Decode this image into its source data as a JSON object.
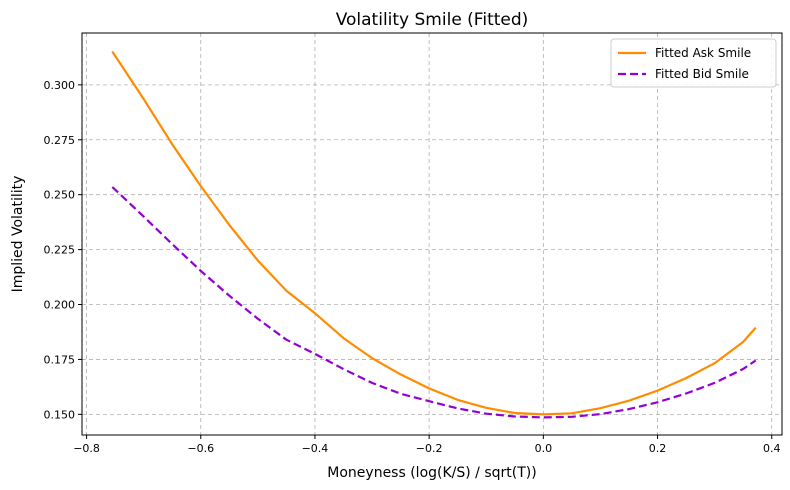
{
  "chart_data": {
    "type": "line",
    "title": "Volatility Smile (Fitted)",
    "xlabel": "Moneyness (log(K/S) / sqrt(T))",
    "ylabel": "Implied Volatility",
    "xlim": [
      -0.808,
      0.418
    ],
    "ylim": [
      0.1406,
      0.3236
    ],
    "xticks": [
      -0.8,
      -0.6,
      -0.4,
      -0.2,
      0.0,
      0.2,
      0.4
    ],
    "xtick_labels": [
      "−0.8",
      "−0.6",
      "−0.4",
      "−0.2",
      "0.0",
      "0.2",
      "0.4"
    ],
    "yticks": [
      0.15,
      0.175,
      0.2,
      0.225,
      0.25,
      0.275,
      0.3
    ],
    "ytick_labels": [
      "0.150",
      "0.175",
      "0.200",
      "0.225",
      "0.250",
      "0.275",
      "0.300"
    ],
    "grid": true,
    "legend_position": "top-right",
    "x": [
      -0.755,
      -0.7,
      -0.65,
      -0.6,
      -0.55,
      -0.5,
      -0.45,
      -0.4,
      -0.35,
      -0.3,
      -0.25,
      -0.2,
      -0.15,
      -0.1,
      -0.05,
      0.0,
      0.05,
      0.1,
      0.15,
      0.2,
      0.25,
      0.3,
      0.35,
      0.372
    ],
    "series": [
      {
        "name": "Fitted Ask Smile",
        "color": "#ff8c00",
        "dash": "solid",
        "values": [
          0.3152,
          0.2935,
          0.273,
          0.2539,
          0.2362,
          0.22,
          0.2063,
          0.196,
          0.1847,
          0.1756,
          0.1682,
          0.1618,
          0.1566,
          0.153,
          0.1506,
          0.15,
          0.1505,
          0.1528,
          0.1562,
          0.1608,
          0.1665,
          0.1733,
          0.183,
          0.1895
        ]
      },
      {
        "name": "Fitted Bid Smile",
        "color": "#9400d3",
        "dash": "dashed",
        "values": [
          0.2535,
          0.24,
          0.2275,
          0.2153,
          0.204,
          0.1935,
          0.184,
          0.1775,
          0.1706,
          0.1643,
          0.1594,
          0.156,
          0.1527,
          0.1503,
          0.149,
          0.1486,
          0.1489,
          0.1501,
          0.1524,
          0.1555,
          0.1595,
          0.1643,
          0.1707,
          0.1745
        ]
      }
    ]
  }
}
